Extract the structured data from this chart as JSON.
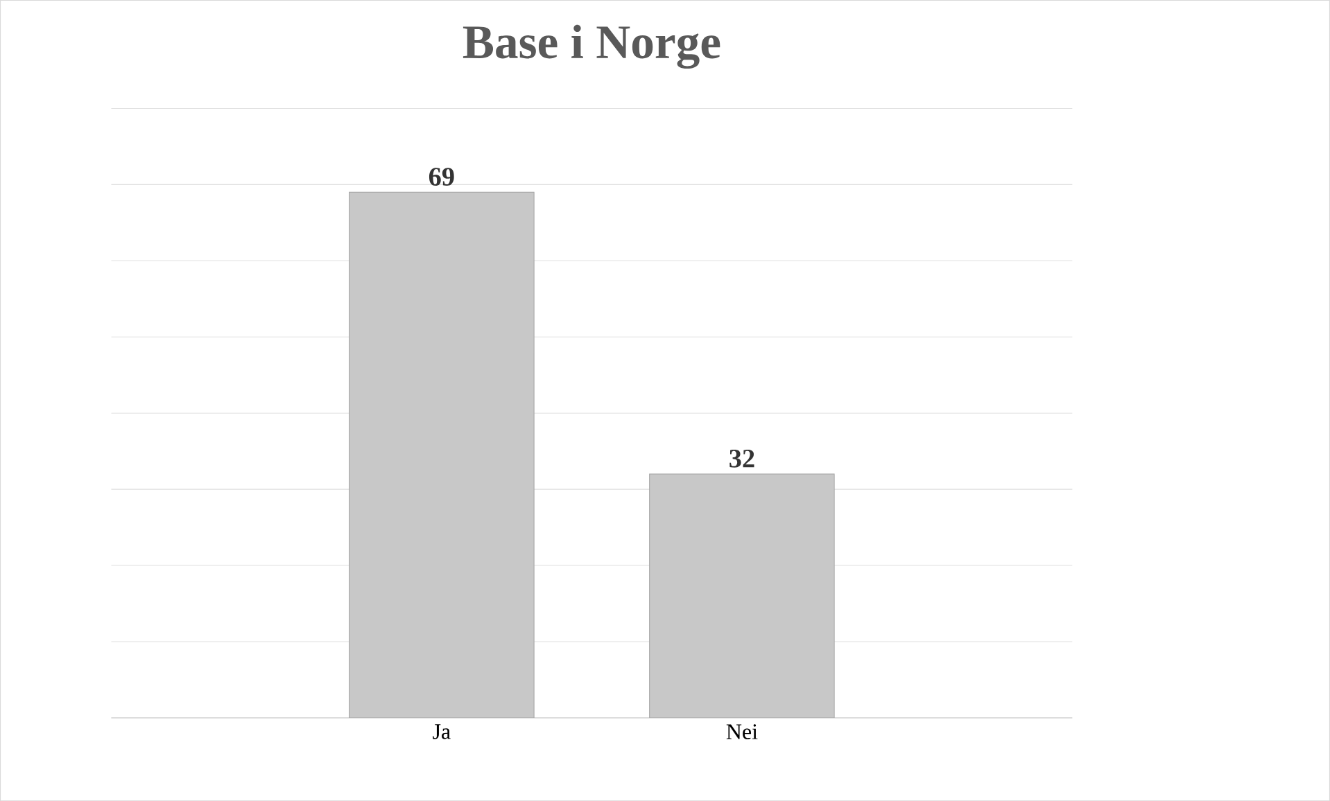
{
  "chart_data": {
    "type": "bar",
    "title": "Base i Norge",
    "categories": [
      "Ja",
      "Nei"
    ],
    "values": [
      69,
      32
    ],
    "color": "#c8c8c8",
    "ylim": [
      0,
      80
    ],
    "yticks": [
      {
        "value": 0,
        "label": null
      },
      {
        "value": 10,
        "label": null
      },
      {
        "value": 20,
        "label": null
      },
      {
        "value": 30,
        "label": null
      },
      {
        "value": 40,
        "label": null
      },
      {
        "value": 50,
        "label": null
      },
      {
        "value": 60,
        "label": null
      },
      {
        "value": 70,
        "label": null
      },
      {
        "value": 80,
        "label": null
      }
    ],
    "grid": "y",
    "tick_labels": "x",
    "data_labels": true
  }
}
